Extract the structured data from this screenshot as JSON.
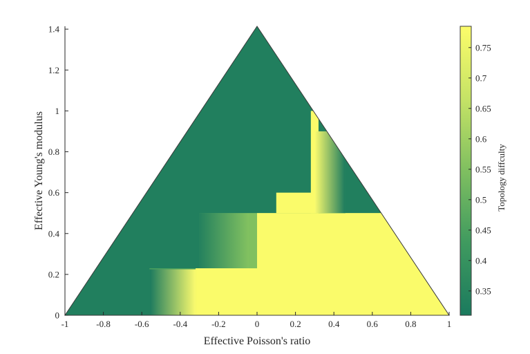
{
  "chart_data": {
    "type": "heatmap",
    "title": "",
    "xlabel": "Effective Poisson's ratio",
    "ylabel": "Effective Young's modulus",
    "colorbar_label": "Topology diffculty",
    "xlim": [
      -1,
      1
    ],
    "ylim": [
      0,
      1.414
    ],
    "xticks": [
      -1,
      -0.8,
      -0.6,
      -0.4,
      -0.2,
      0,
      0.2,
      0.4,
      0.6,
      0.8,
      1
    ],
    "xtick_labels": [
      "-1",
      "-0.8",
      "-0.6",
      "-0.4",
      "-0.2",
      "0",
      "0.2",
      "0.4",
      "0.6",
      "0.8",
      "1"
    ],
    "yticks": [
      0,
      0.2,
      0.4,
      0.6,
      0.8,
      1,
      1.2,
      1.4
    ],
    "ytick_labels": [
      "0",
      "0.2",
      "0.4",
      "0.6",
      "0.8",
      "1",
      "1.2",
      "1.4"
    ],
    "colorbar_range": [
      0.31,
      0.785
    ],
    "colorbar_ticks": [
      0.35,
      0.4,
      0.45,
      0.5,
      0.55,
      0.6,
      0.65,
      0.7,
      0.75
    ],
    "colorbar_tick_labels": [
      "0.35",
      "0.4",
      "0.45",
      "0.5",
      "0.55",
      "0.6",
      "0.65",
      "0.7",
      "0.75"
    ],
    "colormap_low": "#1b7a5e",
    "colormap_high": "#fcfc6a",
    "domain_shape": "triangle with vertices (-1,0), (1,0), (0,1.414)",
    "regions": [
      {
        "x": [
          -1,
          1
        ],
        "y": [
          0,
          1.414
        ],
        "value": 0.33
      },
      {
        "x": [
          -0.56,
          1
        ],
        "y": [
          0,
          0.23
        ],
        "value": 0.45
      },
      {
        "x": [
          -0.32,
          1
        ],
        "y": [
          0,
          0.23
        ],
        "value": 0.78
      },
      {
        "x": [
          -0.3,
          1
        ],
        "y": [
          0.23,
          0.5
        ],
        "value": 0.47
      },
      {
        "x": [
          -0.04,
          1
        ],
        "y": [
          0.23,
          0.5
        ],
        "value": 0.55
      },
      {
        "x": [
          0,
          1
        ],
        "y": [
          0,
          0.5
        ],
        "value": 0.78
      },
      {
        "x": [
          0.1,
          0.3
        ],
        "y": [
          0.5,
          0.6
        ],
        "value": 0.78
      },
      {
        "x": [
          0.28,
          0.32
        ],
        "y": [
          0.5,
          1.0
        ],
        "value": 0.78
      },
      {
        "x": [
          0.32,
          0.46
        ],
        "y": [
          0.5,
          0.85
        ],
        "value": 0.5
      }
    ]
  }
}
